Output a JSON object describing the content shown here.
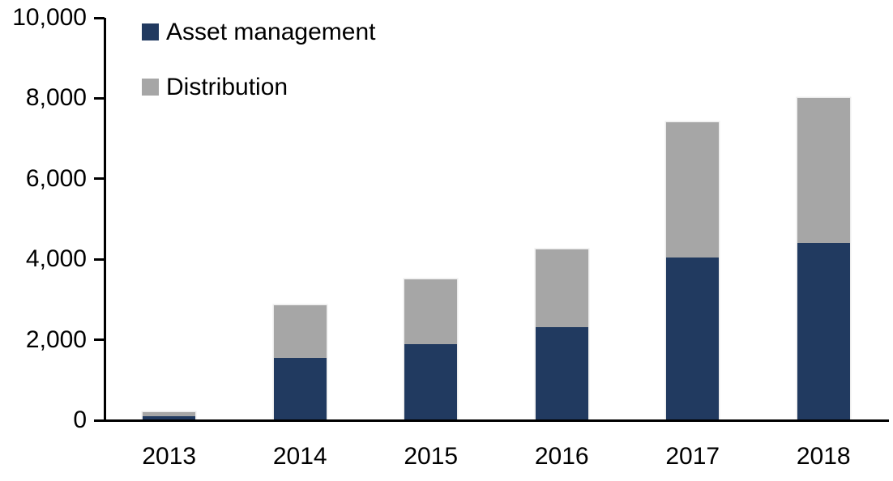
{
  "chart_data": {
    "type": "bar",
    "stacked": true,
    "title": "",
    "xlabel": "",
    "ylabel": "",
    "categories": [
      "2013",
      "2014",
      "2015",
      "2016",
      "2017",
      "2018"
    ],
    "series": [
      {
        "name": "Asset management",
        "color": "#213a60",
        "values": [
          100,
          1550,
          1890,
          2310,
          4050,
          4400
        ]
      },
      {
        "name": "Distribution",
        "color": "#a6a6a6",
        "values": [
          100,
          1310,
          1610,
          1930,
          3350,
          3600
        ]
      }
    ],
    "totals": [
      200,
      2860,
      3500,
      4240,
      7400,
      8000
    ],
    "ylim": [
      0,
      10000
    ],
    "ytick_interval": 2000,
    "ytick_labels": [
      "0",
      "2,000",
      "4,000",
      "6,000",
      "8,000",
      "10,000"
    ],
    "grid": false,
    "legend_position": "top-left",
    "axis_color": "#000000",
    "background_color": "#ffffff"
  }
}
